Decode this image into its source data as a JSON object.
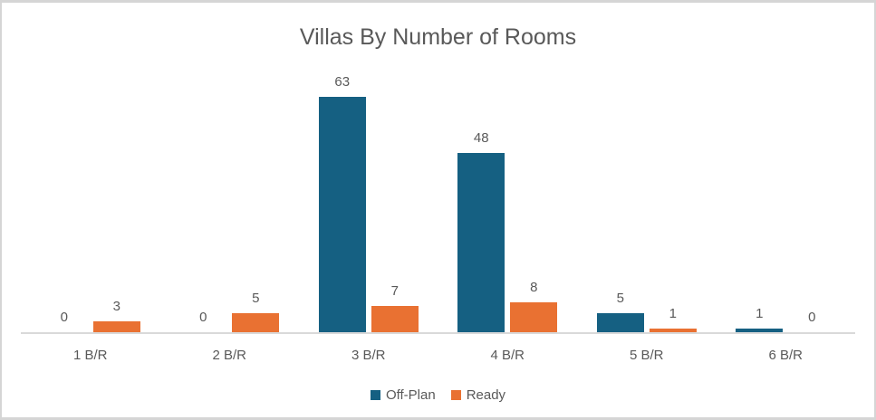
{
  "chart_data": {
    "type": "bar",
    "title": "Villas By Number of Rooms",
    "categories": [
      "1 B/R",
      "2 B/R",
      "3 B/R",
      "4 B/R",
      "5 B/R",
      "6 B/R"
    ],
    "series": [
      {
        "name": "Off-Plan",
        "color": "#156082",
        "values": [
          0,
          0,
          63,
          48,
          5,
          1
        ]
      },
      {
        "name": "Ready",
        "color": "#E97132",
        "values": [
          3,
          5,
          7,
          8,
          1,
          0
        ]
      }
    ],
    "data_labels": true,
    "grid": false,
    "legend_position": "bottom",
    "xlabel": "",
    "ylabel": "",
    "ylim": [
      0,
      72
    ],
    "text_color": "#595959",
    "axis_color": "#D9D9D9"
  }
}
